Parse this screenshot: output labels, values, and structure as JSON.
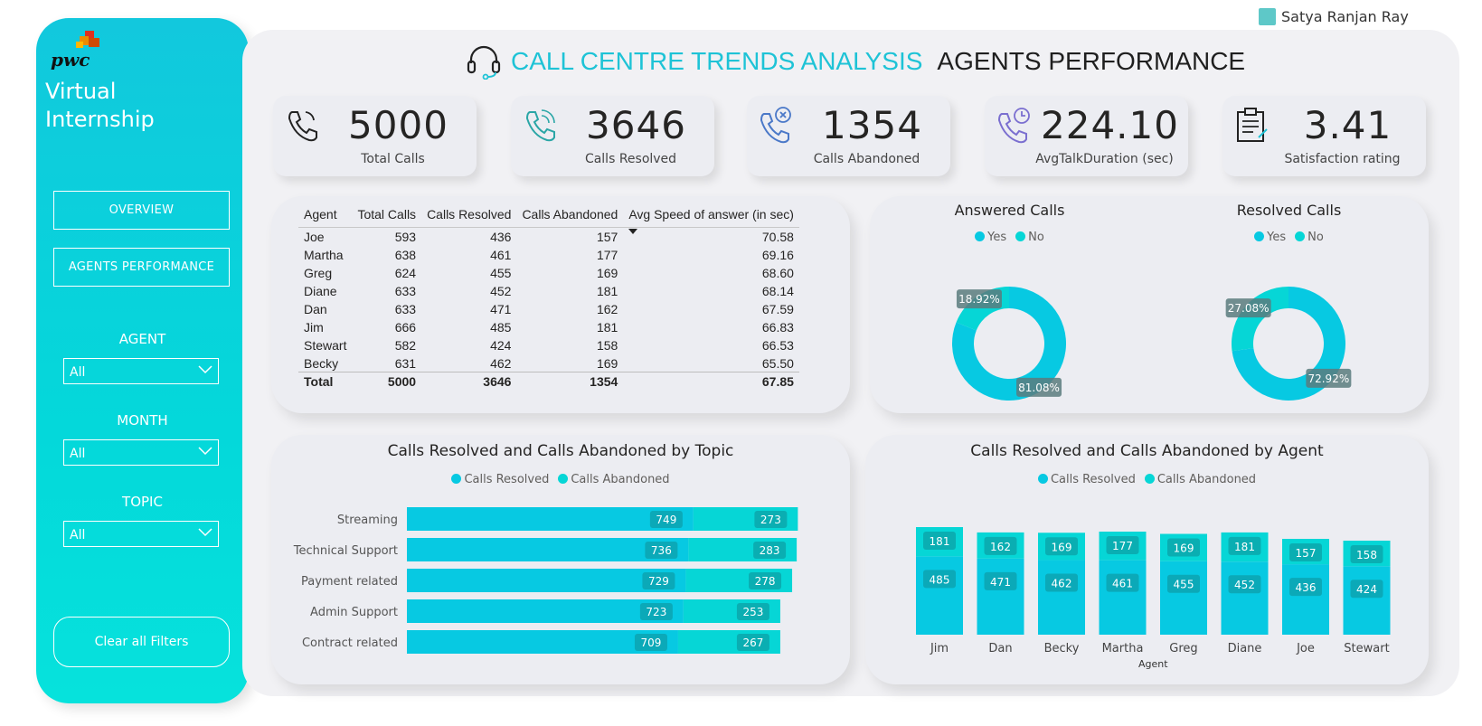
{
  "user": {
    "name": "Satya Ranjan Ray"
  },
  "sidebar": {
    "logo_text": "pwc",
    "title_line1": "Virtual",
    "title_line2": "Internship",
    "nav": [
      {
        "label": "OVERVIEW"
      },
      {
        "label": "AGENTS PERFORMANCE"
      }
    ],
    "filters": [
      {
        "label": "AGENT",
        "value": "All"
      },
      {
        "label": "MONTH",
        "value": "All"
      },
      {
        "label": "TOPIC",
        "value": "All"
      }
    ],
    "clear_label": "Clear all Filters"
  },
  "header": {
    "title": "CALL CENTRE TRENDS ANALYSIS",
    "subtitle": "AGENTS PERFORMANCE"
  },
  "kpis": [
    {
      "value": "5000",
      "label": "Total Calls",
      "icon": "phone-icon"
    },
    {
      "value": "3646",
      "label": "Calls Resolved",
      "icon": "phone-resolved-icon"
    },
    {
      "value": "1354",
      "label": "Calls Abandoned",
      "icon": "phone-abandoned-icon"
    },
    {
      "value": "224.10",
      "label": "AvgTalkDuration (sec)",
      "icon": "phone-clock-icon"
    },
    {
      "value": "3.41",
      "label": "Satisfaction rating",
      "icon": "clipboard-icon"
    }
  ],
  "colors": {
    "primary": "#07c9e2",
    "secondary": "#06d6d6",
    "label_bg": "#0e8e96",
    "accent_title": "#1ec3d6"
  },
  "chart_data": [
    {
      "type": "table",
      "columns": [
        "Agent",
        "Total Calls",
        "Calls Resolved",
        "Calls Abandoned",
        "Avg Speed of answer (in sec)"
      ],
      "rows": [
        [
          "Joe",
          "593",
          "436",
          "157",
          "70.58"
        ],
        [
          "Martha",
          "638",
          "461",
          "177",
          "69.16"
        ],
        [
          "Greg",
          "624",
          "455",
          "169",
          "68.60"
        ],
        [
          "Diane",
          "633",
          "452",
          "181",
          "68.14"
        ],
        [
          "Dan",
          "633",
          "471",
          "162",
          "67.59"
        ],
        [
          "Jim",
          "666",
          "485",
          "181",
          "66.83"
        ],
        [
          "Stewart",
          "582",
          "424",
          "158",
          "66.53"
        ],
        [
          "Becky",
          "631",
          "462",
          "169",
          "65.50"
        ]
      ],
      "total": [
        "Total",
        "5000",
        "3646",
        "1354",
        "67.85"
      ]
    },
    {
      "type": "pie",
      "title": "Answered Calls",
      "legend": [
        "Yes",
        "No"
      ],
      "slices": [
        {
          "name": "Yes",
          "value": 81.08,
          "label": "81.08%"
        },
        {
          "name": "No",
          "value": 18.92,
          "label": "18.92%"
        }
      ]
    },
    {
      "type": "pie",
      "title": "Resolved Calls",
      "legend": [
        "Yes",
        "No"
      ],
      "slices": [
        {
          "name": "Yes",
          "value": 72.92,
          "label": "72.92%"
        },
        {
          "name": "No",
          "value": 27.08,
          "label": "27.08%"
        }
      ]
    },
    {
      "type": "bar",
      "orientation": "horizontal",
      "stacked": true,
      "title": "Calls Resolved and Calls Abandoned by Topic",
      "categories": [
        "Streaming",
        "Technical Support",
        "Payment related",
        "Admin Support",
        "Contract related"
      ],
      "series": [
        {
          "name": "Calls Resolved",
          "values": [
            749,
            736,
            729,
            723,
            709
          ]
        },
        {
          "name": "Calls Abandoned",
          "values": [
            273,
            283,
            278,
            253,
            267
          ]
        }
      ],
      "xlim": [
        0,
        1040
      ]
    },
    {
      "type": "bar",
      "orientation": "vertical",
      "stacked": true,
      "title": "Calls Resolved and Calls Abandoned by Agent",
      "xlabel": "Agent",
      "categories": [
        "Jim",
        "Dan",
        "Becky",
        "Martha",
        "Greg",
        "Diane",
        "Joe",
        "Stewart"
      ],
      "series": [
        {
          "name": "Calls Resolved",
          "values": [
            485,
            471,
            462,
            461,
            455,
            452,
            436,
            424
          ]
        },
        {
          "name": "Calls Abandoned",
          "values": [
            181,
            162,
            169,
            177,
            169,
            181,
            157,
            158
          ]
        }
      ],
      "ylim": [
        0,
        666
      ]
    }
  ]
}
